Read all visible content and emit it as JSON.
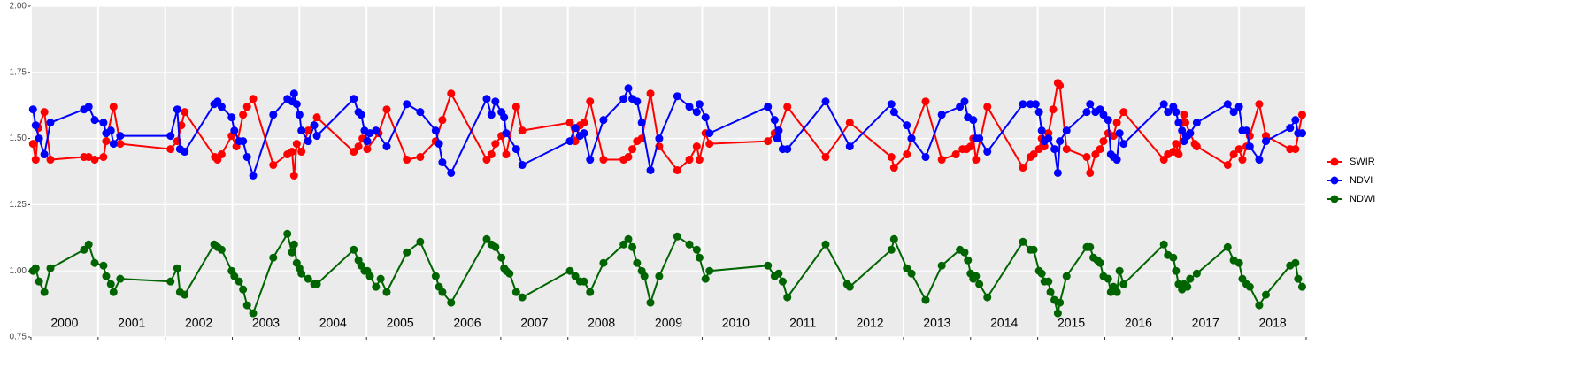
{
  "chart_data": {
    "type": "line",
    "xlim": [
      2000,
      2019
    ],
    "xticks": [
      2000,
      2001,
      2002,
      2003,
      2004,
      2005,
      2006,
      2007,
      2008,
      2009,
      2010,
      2011,
      2012,
      2013,
      2014,
      2015,
      2016,
      2017,
      2018,
      2019
    ],
    "year_labels": [
      "2000",
      "2001",
      "2002",
      "2003",
      "2004",
      "2005",
      "2006",
      "2007",
      "2008",
      "2009",
      "2010",
      "2011",
      "2012",
      "2013",
      "2014",
      "2015",
      "2016",
      "2017",
      "2018"
    ],
    "ylim": [
      0.75,
      2.0
    ],
    "yticks": [
      0.75,
      {
        "value": 1,
        "label": "1.00"
      },
      1.25,
      {
        "value": 1.5,
        "label": "1.50"
      },
      1.75,
      {
        "value": 2,
        "label": "2.00"
      }
    ],
    "grid": true,
    "legend": "right",
    "series": [
      {
        "name": "SWIR",
        "color": "#ff0000",
        "x": [
          2000.03,
          2000.07,
          2000.11,
          2000.2,
          2000.29,
          2000.79,
          2000.86,
          2000.95,
          2001.08,
          2001.12,
          2001.23,
          2001.33,
          2002.08,
          2002.18,
          2002.24,
          2002.29,
          2002.74,
          2002.78,
          2002.84,
          2002.99,
          2003.06,
          2003.16,
          2003.22,
          2003.31,
          2003.61,
          2003.82,
          2003.89,
          2003.92,
          2003.96,
          2004.03,
          2004.13,
          2004.26,
          2004.81,
          2004.88,
          2004.94,
          2005.01,
          2005.18,
          2005.3,
          2005.6,
          2005.8,
          2006.03,
          2006.13,
          2006.26,
          2006.79,
          2006.86,
          2006.92,
          2007.01,
          2007.08,
          2007.23,
          2007.32,
          2008.03,
          2008.11,
          2008.18,
          2008.24,
          2008.33,
          2008.53,
          2008.83,
          2008.9,
          2008.96,
          2009.03,
          2009.1,
          2009.23,
          2009.36,
          2009.63,
          2009.81,
          2009.92,
          2009.96,
          2010.05,
          2010.11,
          2010.98,
          2011.08,
          2011.14,
          2011.27,
          2011.84,
          2012.2,
          2012.82,
          2012.86,
          2013.05,
          2013.12,
          2013.33,
          2013.57,
          2013.78,
          2013.88,
          2013.94,
          2014.0,
          2014.04,
          2014.08,
          2014.25,
          2014.78,
          2014.89,
          2014.94,
          2015.02,
          2015.06,
          2015.1,
          2015.16,
          2015.23,
          2015.3,
          2015.33,
          2015.43,
          2015.73,
          2015.78,
          2015.86,
          2015.93,
          2015.98,
          2016.05,
          2016.13,
          2016.18,
          2016.28,
          2016.88,
          2016.94,
          2017.02,
          2017.06,
          2017.1,
          2017.15,
          2017.18,
          2017.2,
          2017.27,
          2017.34,
          2017.37,
          2017.83,
          2017.92,
          2018.0,
          2018.05,
          2018.11,
          2018.16,
          2018.3,
          2018.4,
          2018.76,
          2018.84,
          2018.94
        ],
        "values": [
          1.48,
          1.42,
          1.54,
          1.6,
          1.42,
          1.43,
          1.43,
          1.42,
          1.43,
          1.49,
          1.62,
          1.48,
          1.46,
          1.49,
          1.55,
          1.6,
          1.43,
          1.42,
          1.44,
          1.51,
          1.47,
          1.59,
          1.62,
          1.65,
          1.4,
          1.44,
          1.45,
          1.36,
          1.48,
          1.45,
          1.53,
          1.58,
          1.45,
          1.47,
          1.5,
          1.46,
          1.52,
          1.61,
          1.42,
          1.43,
          1.49,
          1.57,
          1.67,
          1.42,
          1.44,
          1.48,
          1.51,
          1.44,
          1.62,
          1.53,
          1.56,
          1.49,
          1.55,
          1.56,
          1.64,
          1.42,
          1.42,
          1.43,
          1.46,
          1.49,
          1.5,
          1.67,
          1.47,
          1.38,
          1.42,
          1.47,
          1.42,
          1.52,
          1.48,
          1.49,
          1.52,
          1.53,
          1.62,
          1.43,
          1.56,
          1.43,
          1.39,
          1.44,
          1.5,
          1.64,
          1.42,
          1.44,
          1.46,
          1.46,
          1.47,
          1.5,
          1.42,
          1.62,
          1.39,
          1.43,
          1.44,
          1.46,
          1.5,
          1.47,
          1.52,
          1.61,
          1.71,
          1.7,
          1.46,
          1.43,
          1.37,
          1.44,
          1.46,
          1.49,
          1.52,
          1.51,
          1.56,
          1.6,
          1.42,
          1.44,
          1.45,
          1.48,
          1.44,
          1.56,
          1.59,
          1.56,
          1.52,
          1.48,
          1.47,
          1.4,
          1.44,
          1.46,
          1.42,
          1.47,
          1.51,
          1.63,
          1.51,
          1.46,
          1.46,
          1.59
        ]
      },
      {
        "name": "NDVI",
        "color": "#0000ff",
        "x": [
          2000.03,
          2000.07,
          2000.12,
          2000.2,
          2000.29,
          2000.79,
          2000.86,
          2000.95,
          2001.08,
          2001.12,
          2001.19,
          2001.23,
          2001.33,
          2002.08,
          2002.18,
          2002.22,
          2002.29,
          2002.73,
          2002.78,
          2002.84,
          2002.99,
          2003.03,
          2003.1,
          2003.16,
          2003.22,
          2003.31,
          2003.61,
          2003.82,
          2003.89,
          2003.92,
          2003.96,
          2004.0,
          2004.03,
          2004.13,
          2004.22,
          2004.26,
          2004.81,
          2004.88,
          2004.92,
          2004.97,
          2005.01,
          2005.05,
          2005.14,
          2005.3,
          2005.6,
          2005.8,
          2006.03,
          2006.08,
          2006.13,
          2006.26,
          2006.79,
          2006.86,
          2006.92,
          2007.01,
          2007.05,
          2007.08,
          2007.23,
          2007.32,
          2008.03,
          2008.11,
          2008.18,
          2008.24,
          2008.33,
          2008.53,
          2008.83,
          2008.9,
          2008.96,
          2009.03,
          2009.1,
          2009.23,
          2009.36,
          2009.63,
          2009.81,
          2009.92,
          2009.96,
          2010.05,
          2010.11,
          2010.98,
          2011.08,
          2011.12,
          2011.14,
          2011.2,
          2011.27,
          2011.84,
          2012.2,
          2012.82,
          2012.86,
          2013.05,
          2013.12,
          2013.33,
          2013.57,
          2013.84,
          2013.91,
          2013.96,
          2014.04,
          2014.08,
          2014.13,
          2014.25,
          2014.78,
          2014.89,
          2014.97,
          2015.02,
          2015.06,
          2015.1,
          2015.16,
          2015.25,
          2015.3,
          2015.33,
          2015.43,
          2015.73,
          2015.78,
          2015.86,
          2015.93,
          2015.98,
          2016.05,
          2016.09,
          2016.13,
          2016.18,
          2016.22,
          2016.28,
          2016.88,
          2016.94,
          2017.02,
          2017.06,
          2017.1,
          2017.15,
          2017.18,
          2017.23,
          2017.27,
          2017.37,
          2017.83,
          2017.92,
          2018.0,
          2018.05,
          2018.11,
          2018.16,
          2018.3,
          2018.4,
          2018.76,
          2018.84,
          2018.88,
          2018.94
        ],
        "values": [
          1.61,
          1.55,
          1.5,
          1.44,
          1.56,
          1.61,
          1.62,
          1.57,
          1.56,
          1.52,
          1.53,
          1.48,
          1.51,
          1.51,
          1.61,
          1.46,
          1.45,
          1.63,
          1.64,
          1.62,
          1.58,
          1.53,
          1.49,
          1.49,
          1.43,
          1.36,
          1.59,
          1.65,
          1.64,
          1.67,
          1.63,
          1.59,
          1.53,
          1.49,
          1.55,
          1.51,
          1.65,
          1.6,
          1.59,
          1.53,
          1.49,
          1.52,
          1.53,
          1.47,
          1.63,
          1.6,
          1.53,
          1.48,
          1.41,
          1.37,
          1.65,
          1.59,
          1.64,
          1.6,
          1.58,
          1.52,
          1.46,
          1.4,
          1.49,
          1.54,
          1.51,
          1.52,
          1.42,
          1.57,
          1.65,
          1.69,
          1.65,
          1.64,
          1.56,
          1.38,
          1.5,
          1.66,
          1.62,
          1.6,
          1.63,
          1.58,
          1.52,
          1.62,
          1.57,
          1.5,
          1.53,
          1.46,
          1.46,
          1.64,
          1.47,
          1.63,
          1.6,
          1.55,
          1.5,
          1.43,
          1.59,
          1.62,
          1.64,
          1.58,
          1.57,
          1.5,
          1.5,
          1.45,
          1.63,
          1.63,
          1.63,
          1.6,
          1.53,
          1.49,
          1.5,
          1.46,
          1.37,
          1.49,
          1.53,
          1.6,
          1.63,
          1.6,
          1.61,
          1.59,
          1.57,
          1.44,
          1.43,
          1.42,
          1.52,
          1.48,
          1.63,
          1.6,
          1.62,
          1.6,
          1.56,
          1.53,
          1.49,
          1.51,
          1.52,
          1.56,
          1.63,
          1.6,
          1.62,
          1.53,
          1.53,
          1.47,
          1.42,
          1.49,
          1.54,
          1.57,
          1.52,
          1.52
        ]
      },
      {
        "name": "NDWI",
        "color": "#006400",
        "x": [
          2000.03,
          2000.07,
          2000.12,
          2000.2,
          2000.29,
          2000.79,
          2000.86,
          2000.95,
          2001.08,
          2001.12,
          2001.19,
          2001.23,
          2001.33,
          2002.08,
          2002.18,
          2002.22,
          2002.29,
          2002.73,
          2002.78,
          2002.84,
          2002.99,
          2003.03,
          2003.1,
          2003.16,
          2003.22,
          2003.31,
          2003.61,
          2003.82,
          2003.89,
          2003.92,
          2003.96,
          2004.0,
          2004.03,
          2004.13,
          2004.22,
          2004.26,
          2004.81,
          2004.88,
          2004.92,
          2004.97,
          2005.01,
          2005.05,
          2005.14,
          2005.21,
          2005.3,
          2005.6,
          2005.8,
          2006.03,
          2006.08,
          2006.13,
          2006.26,
          2006.79,
          2006.86,
          2006.92,
          2007.01,
          2007.05,
          2007.08,
          2007.13,
          2007.23,
          2007.32,
          2008.03,
          2008.11,
          2008.18,
          2008.24,
          2008.33,
          2008.53,
          2008.83,
          2008.9,
          2008.96,
          2009.03,
          2009.1,
          2009.14,
          2009.23,
          2009.36,
          2009.63,
          2009.81,
          2009.92,
          2009.96,
          2010.05,
          2010.11,
          2010.98,
          2011.08,
          2011.14,
          2011.2,
          2011.27,
          2011.84,
          2012.16,
          2012.2,
          2012.82,
          2012.86,
          2013.05,
          2013.12,
          2013.33,
          2013.57,
          2013.84,
          2013.91,
          2013.96,
          2014.0,
          2014.04,
          2014.08,
          2014.13,
          2014.25,
          2014.78,
          2014.89,
          2014.94,
          2015.02,
          2015.06,
          2015.1,
          2015.16,
          2015.19,
          2015.25,
          2015.3,
          2015.33,
          2015.43,
          2015.73,
          2015.78,
          2015.83,
          2015.89,
          2015.93,
          2015.98,
          2016.05,
          2016.09,
          2016.13,
          2016.18,
          2016.22,
          2016.28,
          2016.88,
          2016.94,
          2017.02,
          2017.06,
          2017.1,
          2017.15,
          2017.18,
          2017.23,
          2017.27,
          2017.37,
          2017.83,
          2017.92,
          2018.0,
          2018.05,
          2018.11,
          2018.16,
          2018.3,
          2018.4,
          2018.76,
          2018.84,
          2018.88,
          2018.94
        ],
        "values": [
          1.0,
          1.01,
          0.96,
          0.92,
          1.01,
          1.08,
          1.1,
          1.03,
          1.02,
          0.98,
          0.95,
          0.92,
          0.97,
          0.96,
          1.01,
          0.92,
          0.91,
          1.1,
          1.09,
          1.08,
          1.0,
          0.98,
          0.96,
          0.93,
          0.87,
          0.84,
          1.05,
          1.14,
          1.07,
          1.1,
          1.03,
          1.01,
          0.99,
          0.97,
          0.95,
          0.95,
          1.08,
          1.04,
          1.02,
          1.0,
          1.0,
          0.98,
          0.94,
          0.97,
          0.92,
          1.07,
          1.11,
          0.98,
          0.94,
          0.92,
          0.88,
          1.12,
          1.1,
          1.09,
          1.05,
          1.01,
          1.0,
          0.99,
          0.92,
          0.9,
          1.0,
          0.98,
          0.96,
          0.96,
          0.92,
          1.03,
          1.1,
          1.12,
          1.09,
          1.03,
          1.0,
          0.98,
          0.88,
          0.98,
          1.13,
          1.1,
          1.08,
          1.05,
          0.97,
          1.0,
          1.02,
          0.98,
          0.99,
          0.96,
          0.9,
          1.1,
          0.95,
          0.94,
          1.08,
          1.12,
          1.01,
          0.99,
          0.89,
          1.02,
          1.08,
          1.07,
          1.04,
          0.99,
          0.97,
          0.98,
          0.95,
          0.9,
          1.11,
          1.08,
          1.08,
          1.0,
          0.99,
          0.96,
          0.96,
          0.92,
          0.89,
          0.84,
          0.88,
          0.98,
          1.09,
          1.09,
          1.05,
          1.04,
          1.03,
          0.98,
          0.97,
          0.92,
          0.94,
          0.92,
          1.0,
          0.95,
          1.1,
          1.06,
          1.05,
          1.0,
          0.95,
          0.93,
          0.95,
          0.94,
          0.97,
          0.99,
          1.09,
          1.04,
          1.03,
          0.97,
          0.95,
          0.94,
          0.87,
          0.91,
          1.02,
          1.03,
          0.97,
          0.94
        ]
      }
    ]
  }
}
